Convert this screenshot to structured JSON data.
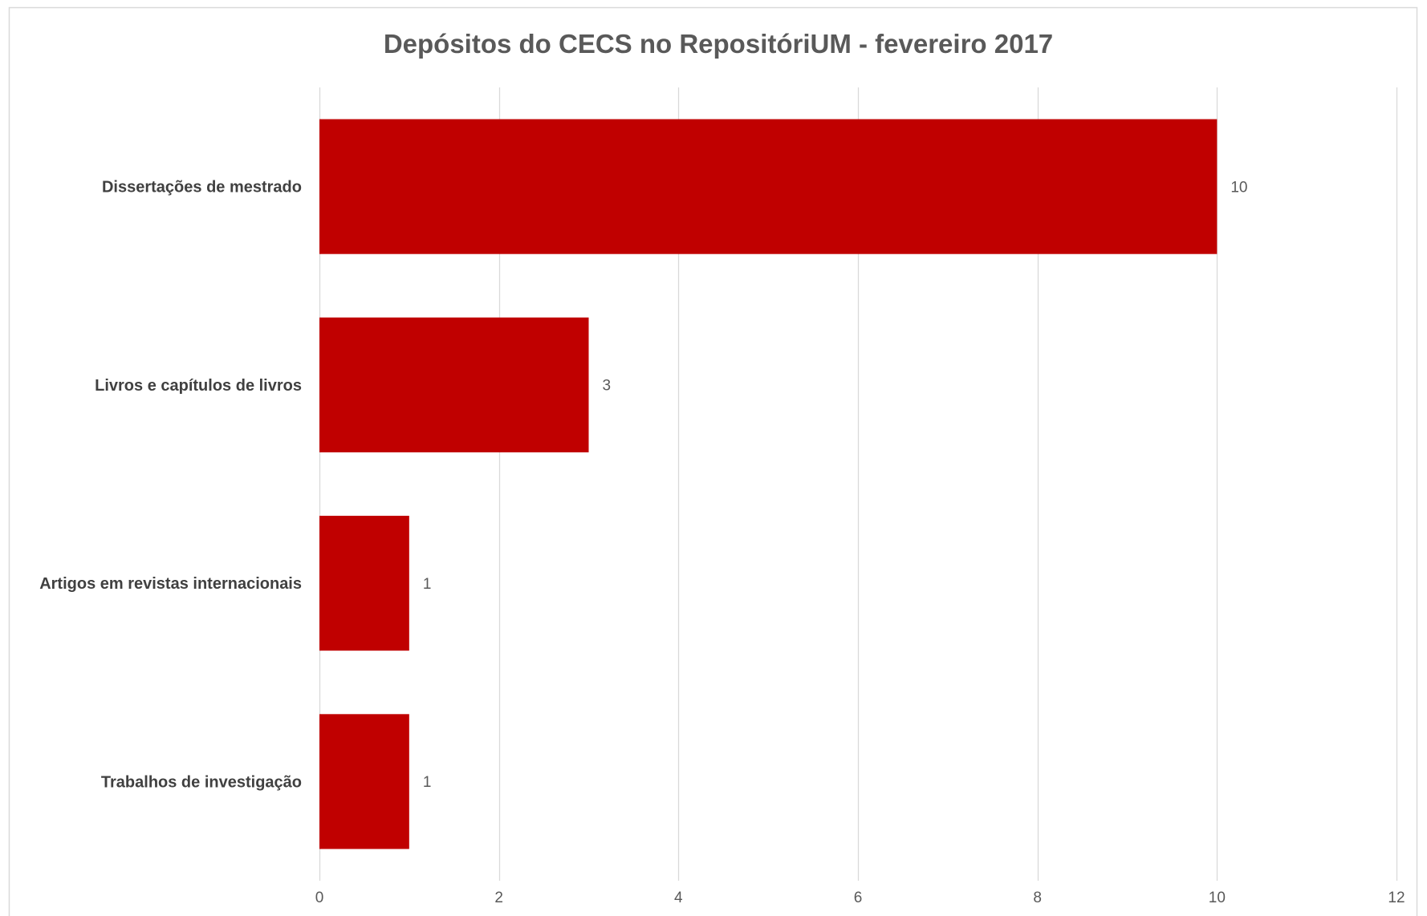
{
  "chart_data": {
    "type": "bar",
    "orientation": "horizontal",
    "title": "Depósitos do CECS no RepositóriUM - fevereiro 2017",
    "categories": [
      "Dissertações de mestrado",
      "Livros e capítulos de livros",
      "Artigos em revistas internacionais",
      "Trabalhos de investigação"
    ],
    "values": [
      10,
      3,
      1,
      1
    ],
    "xlim": [
      0,
      12
    ],
    "x_ticks": [
      0,
      2,
      4,
      6,
      8,
      10,
      12
    ],
    "data_labels": true,
    "grid": "vertical",
    "legend": "none"
  },
  "colors": {
    "bar": "#C00000",
    "grid": "#D9D9D9",
    "frame": "#D9D9D9",
    "title": "#595959",
    "category_label": "#404040",
    "tick_label": "#595959",
    "data_label": "#595959"
  }
}
